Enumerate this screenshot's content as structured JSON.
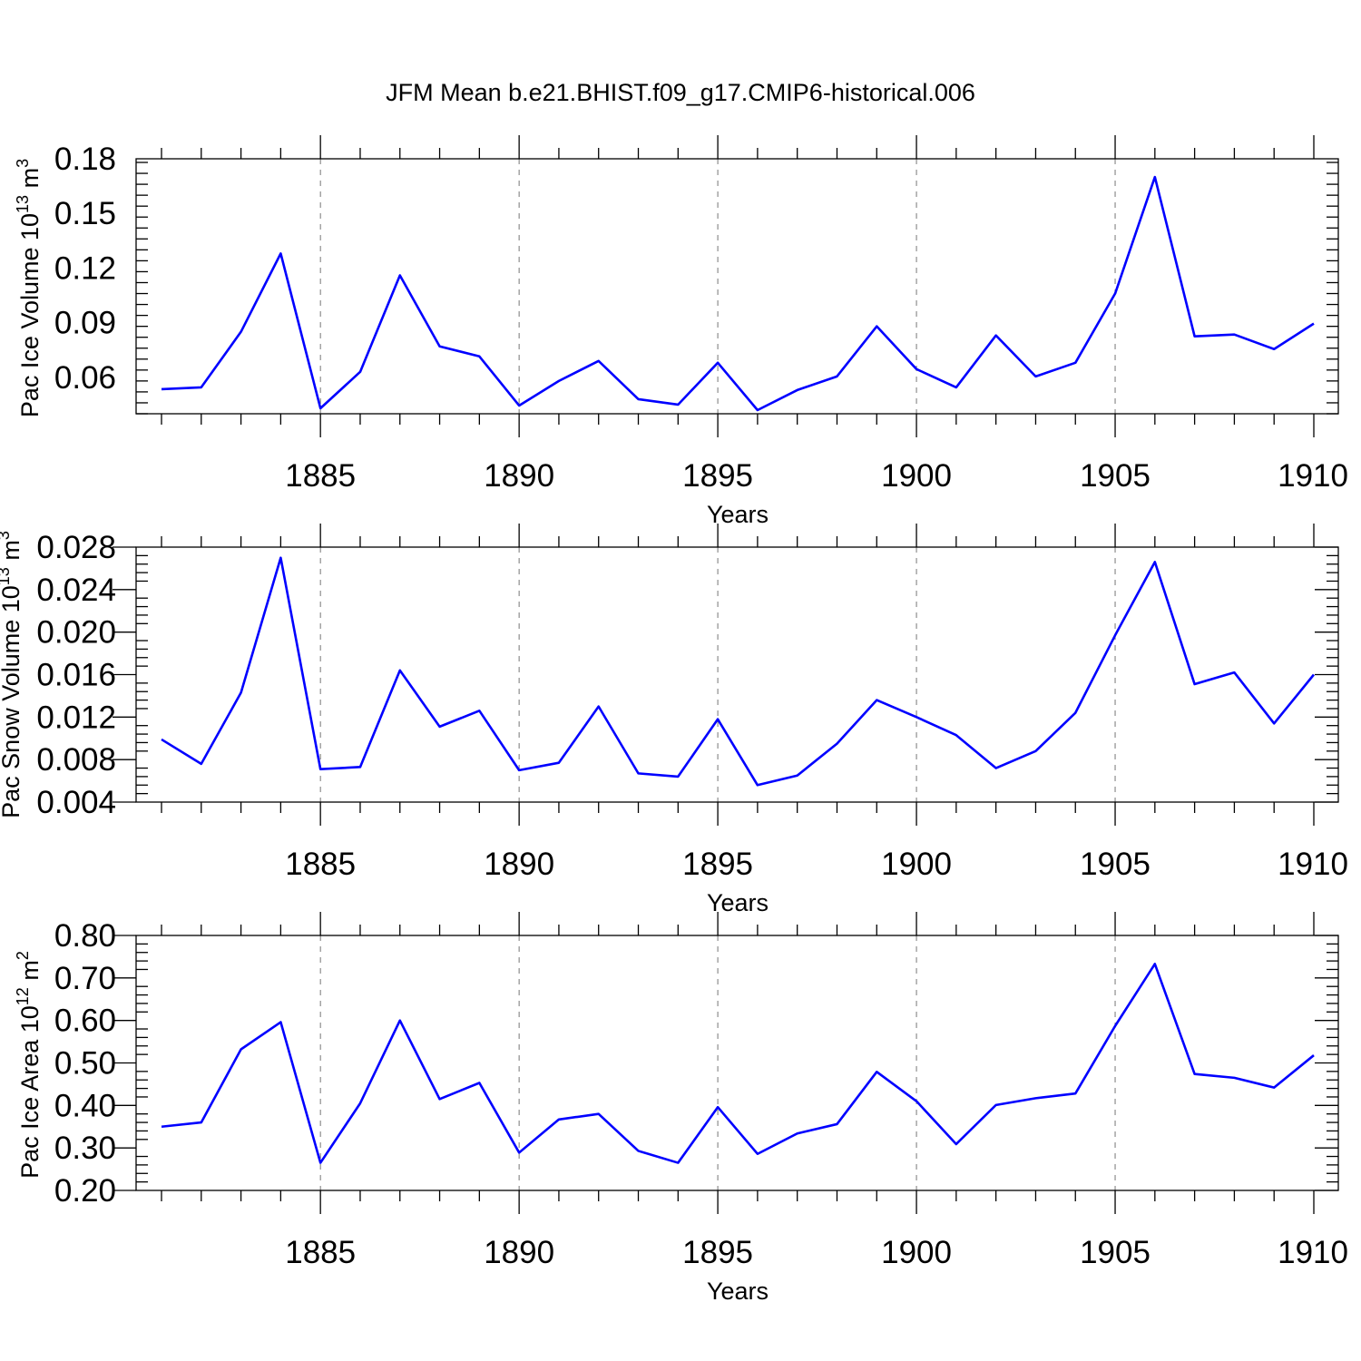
{
  "title": "JFM Mean b.e21.BHIST.f09_g17.CMIP6-historical.006",
  "line_color": "#0000ff",
  "chart_data": [
    {
      "type": "line",
      "xlabel": "Years",
      "ylabel": "Pac Ice Volume 10",
      "ylabel_exp": "13",
      "ylabel_unit": "m",
      "ylabel_unit_exp": "3",
      "xlim": [
        1881,
        1910
      ],
      "ylim": [
        0.04,
        0.18
      ],
      "xticks": [
        1885,
        1890,
        1895,
        1900,
        1905,
        1910
      ],
      "xtick_labels": [
        "1885",
        "1890",
        "1895",
        "1900",
        "1905",
        "1910"
      ],
      "yticks": [
        0.06,
        0.09,
        0.12,
        0.15,
        0.18
      ],
      "ytick_labels": [
        "0.06",
        "0.09",
        "0.12",
        "0.15",
        "0.18"
      ],
      "x": [
        1881,
        1882,
        1883,
        1884,
        1885,
        1886,
        1887,
        1888,
        1889,
        1890,
        1891,
        1892,
        1893,
        1894,
        1895,
        1896,
        1897,
        1898,
        1899,
        1900,
        1901,
        1902,
        1903,
        1904,
        1905,
        1906,
        1907,
        1908,
        1909,
        1910
      ],
      "values": [
        0.0535,
        0.0545,
        0.085,
        0.128,
        0.043,
        0.063,
        0.116,
        0.077,
        0.0715,
        0.0445,
        0.058,
        0.069,
        0.048,
        0.045,
        0.068,
        0.042,
        0.053,
        0.0605,
        0.088,
        0.0645,
        0.0545,
        0.083,
        0.0605,
        0.068,
        0.106,
        0.17,
        0.0825,
        0.0835,
        0.0755,
        0.0895
      ]
    },
    {
      "type": "line",
      "xlabel": "Years",
      "ylabel": "Pac Snow Volume 10",
      "ylabel_exp": "13",
      "ylabel_unit": "m",
      "ylabel_unit_exp": "3",
      "xlim": [
        1881,
        1910
      ],
      "ylim": [
        0.004,
        0.028
      ],
      "xticks": [
        1885,
        1890,
        1895,
        1900,
        1905,
        1910
      ],
      "xtick_labels": [
        "1885",
        "1890",
        "1895",
        "1900",
        "1905",
        "1910"
      ],
      "yticks": [
        0.004,
        0.008,
        0.012,
        0.016,
        0.02,
        0.024,
        0.028
      ],
      "ytick_labels": [
        "0.004",
        "0.008",
        "0.012",
        "0.016",
        "0.020",
        "0.024",
        "0.028"
      ],
      "x": [
        1881,
        1882,
        1883,
        1884,
        1885,
        1886,
        1887,
        1888,
        1889,
        1890,
        1891,
        1892,
        1893,
        1894,
        1895,
        1896,
        1897,
        1898,
        1899,
        1900,
        1901,
        1902,
        1903,
        1904,
        1905,
        1906,
        1907,
        1908,
        1909,
        1910
      ],
      "values": [
        0.0099,
        0.0076,
        0.0143,
        0.027,
        0.0071,
        0.0073,
        0.0164,
        0.0111,
        0.0126,
        0.007,
        0.0077,
        0.013,
        0.0067,
        0.0064,
        0.0118,
        0.0056,
        0.0065,
        0.0095,
        0.0136,
        0.012,
        0.0103,
        0.0072,
        0.0088,
        0.0124,
        0.0197,
        0.0266,
        0.0151,
        0.0162,
        0.0114,
        0.016
      ]
    },
    {
      "type": "line",
      "xlabel": "Years",
      "ylabel": "Pac Ice Area 10",
      "ylabel_exp": "12",
      "ylabel_unit": "m",
      "ylabel_unit_exp": "2",
      "xlim": [
        1881,
        1910
      ],
      "ylim": [
        0.2,
        0.8
      ],
      "xticks": [
        1885,
        1890,
        1895,
        1900,
        1905,
        1910
      ],
      "xtick_labels": [
        "1885",
        "1890",
        "1895",
        "1900",
        "1905",
        "1910"
      ],
      "yticks": [
        0.2,
        0.3,
        0.4,
        0.5,
        0.6,
        0.7,
        0.8
      ],
      "ytick_labels": [
        "0.20",
        "0.30",
        "0.40",
        "0.50",
        "0.60",
        "0.70",
        "0.80"
      ],
      "x": [
        1881,
        1882,
        1883,
        1884,
        1885,
        1886,
        1887,
        1888,
        1889,
        1890,
        1891,
        1892,
        1893,
        1894,
        1895,
        1896,
        1897,
        1898,
        1899,
        1900,
        1901,
        1902,
        1903,
        1904,
        1905,
        1906,
        1907,
        1908,
        1909,
        1910
      ],
      "values": [
        0.35,
        0.36,
        0.532,
        0.596,
        0.265,
        0.405,
        0.6,
        0.415,
        0.453,
        0.289,
        0.367,
        0.38,
        0.293,
        0.265,
        0.396,
        0.286,
        0.334,
        0.356,
        0.479,
        0.41,
        0.309,
        0.401,
        0.417,
        0.428,
        0.587,
        0.733,
        0.474,
        0.465,
        0.442,
        0.518
      ]
    }
  ]
}
